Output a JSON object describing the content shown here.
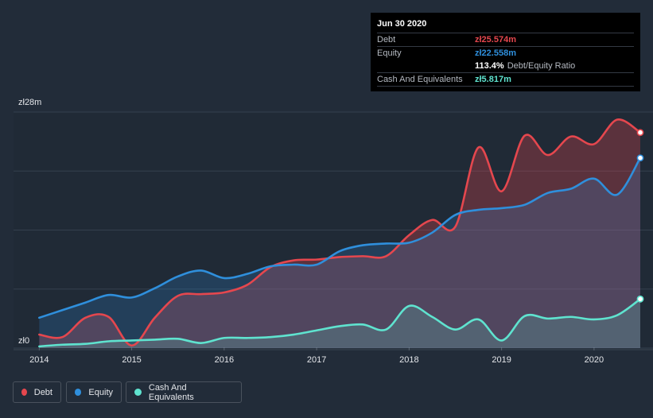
{
  "tooltip": {
    "date": "Jun 30 2020",
    "debt_label": "Debt",
    "debt_value": "zł25.574m",
    "equity_label": "Equity",
    "equity_value": "zł22.558m",
    "ratio_value": "113.4%",
    "ratio_label": "Debt/Equity Ratio",
    "cash_label": "Cash And Equivalents",
    "cash_value": "zł5.817m"
  },
  "legend": {
    "debt": "Debt",
    "equity": "Equity",
    "cash": "Cash And Equivalents"
  },
  "colors": {
    "debt": "#e5474e",
    "equity": "#2f8fdc",
    "cash": "#5fe3cf",
    "background": "#222c39"
  },
  "chart_data": {
    "type": "area",
    "title": "",
    "xlabel": "",
    "ylabel": "",
    "y_tick_labels": [
      "zł0",
      "zł28m"
    ],
    "ylim": [
      0,
      28
    ],
    "xlim": [
      2013.98,
      2020.5
    ],
    "x_tick_labels": [
      "2014",
      "2015",
      "2016",
      "2017",
      "2018",
      "2019",
      "2020"
    ],
    "x_ticks": [
      2014,
      2015,
      2016,
      2017,
      2018,
      2019,
      2020
    ],
    "series": [
      {
        "name": "Debt",
        "x": [
          2014.0,
          2014.25,
          2014.5,
          2014.75,
          2015.0,
          2015.25,
          2015.5,
          2015.75,
          2016.0,
          2016.25,
          2016.5,
          2016.75,
          2017.0,
          2017.25,
          2017.5,
          2017.75,
          2018.0,
          2018.25,
          2018.5,
          2018.75,
          2019.0,
          2019.25,
          2019.5,
          2019.75,
          2020.0,
          2020.25,
          2020.5
        ],
        "values": [
          1.6,
          1.3,
          3.6,
          3.7,
          0.3,
          3.6,
          6.2,
          6.4,
          6.6,
          7.5,
          9.6,
          10.4,
          10.5,
          10.8,
          10.9,
          10.9,
          13.4,
          15.2,
          14.4,
          23.8,
          18.6,
          25.2,
          22.9,
          25.1,
          24.2,
          27.1,
          25.574
        ]
      },
      {
        "name": "Equity",
        "x": [
          2014.0,
          2014.25,
          2014.5,
          2014.75,
          2015.0,
          2015.25,
          2015.5,
          2015.75,
          2016.0,
          2016.25,
          2016.5,
          2016.75,
          2017.0,
          2017.25,
          2017.5,
          2017.75,
          2018.0,
          2018.25,
          2018.5,
          2018.75,
          2019.0,
          2019.25,
          2019.5,
          2019.75,
          2020.0,
          2020.25,
          2020.5
        ],
        "values": [
          3.6,
          4.5,
          5.4,
          6.3,
          6.0,
          7.1,
          8.5,
          9.2,
          8.3,
          8.8,
          9.7,
          9.9,
          9.9,
          11.5,
          12.2,
          12.4,
          12.5,
          13.7,
          15.8,
          16.4,
          16.6,
          17.0,
          18.4,
          18.9,
          20.1,
          18.2,
          22.558
        ]
      },
      {
        "name": "Cash And Equivalents",
        "x": [
          2014.0,
          2014.25,
          2014.5,
          2014.75,
          2015.0,
          2015.25,
          2015.5,
          2015.75,
          2016.0,
          2016.25,
          2016.5,
          2016.75,
          2017.0,
          2017.25,
          2017.5,
          2017.75,
          2018.0,
          2018.25,
          2018.5,
          2018.75,
          2019.0,
          2019.25,
          2019.5,
          2019.75,
          2020.0,
          2020.25,
          2020.5
        ],
        "values": [
          0.2,
          0.4,
          0.5,
          0.8,
          0.9,
          1.0,
          1.1,
          0.6,
          1.2,
          1.2,
          1.3,
          1.6,
          2.1,
          2.6,
          2.8,
          2.2,
          5.0,
          3.7,
          2.2,
          3.4,
          0.9,
          3.8,
          3.5,
          3.7,
          3.4,
          3.9,
          5.817
        ]
      }
    ]
  }
}
